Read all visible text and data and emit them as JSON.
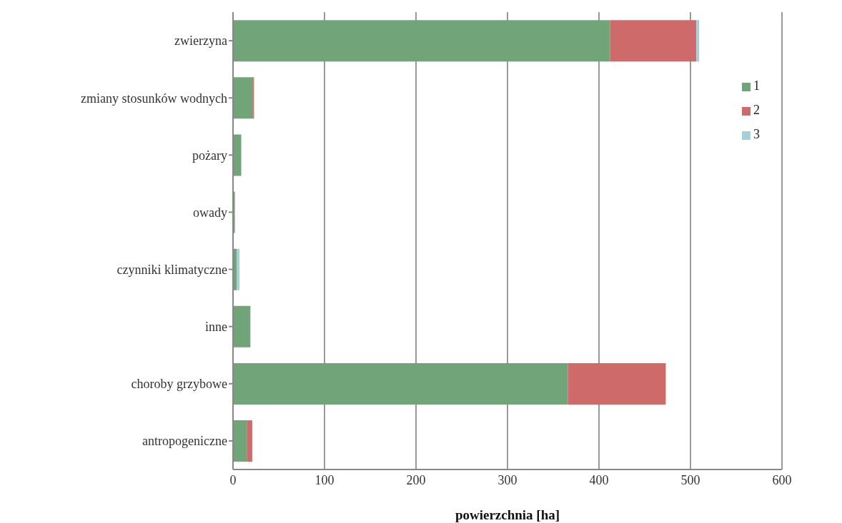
{
  "chart_data": {
    "type": "bar",
    "orientation": "horizontal",
    "stacked": true,
    "xlabel": "powierzchnia [ha]",
    "categories": [
      "zwierzyna",
      "zmiany stosunków wodnych",
      "pożary",
      "owady",
      "czynniki klimatyczne",
      "inne",
      "choroby grzybowe",
      "antropogeniczne"
    ],
    "series": [
      {
        "name": "1",
        "color": "#71a479",
        "values": [
          412,
          22,
          9,
          2,
          4,
          19,
          366,
          15
        ]
      },
      {
        "name": "2",
        "color": "#cf6a6a",
        "values": [
          94.5,
          1,
          0,
          0,
          0,
          0,
          107,
          6
        ]
      },
      {
        "name": "3",
        "color": "#a6cfd8",
        "values": [
          3,
          0,
          0,
          0,
          3,
          0,
          0,
          0
        ]
      }
    ],
    "xlim": [
      0,
      600
    ],
    "xticks": [
      0,
      100,
      200,
      300,
      400,
      500,
      600
    ],
    "grid": "x",
    "legend": "top right"
  }
}
